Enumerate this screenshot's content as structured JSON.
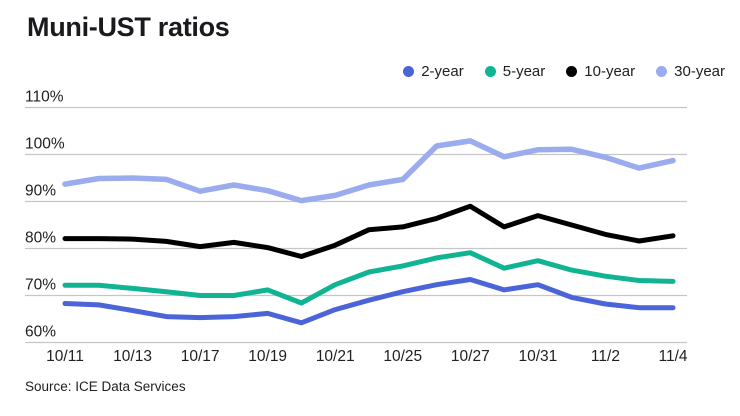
{
  "title": "Muni-UST ratios",
  "source": "Source: ICE Data Services",
  "legend": [
    {
      "label": "2-year",
      "color": "#4b64d8"
    },
    {
      "label": "5-year",
      "color": "#10b493"
    },
    {
      "label": "10-year",
      "color": "#000000"
    },
    {
      "label": "30-year",
      "color": "#9bacee"
    }
  ],
  "chart_data": {
    "type": "line",
    "title": "Muni-UST ratios",
    "x": [
      "10/11",
      "10/12",
      "10/13",
      "10/14",
      "10/17",
      "10/18",
      "10/19",
      "10/20",
      "10/21",
      "10/24",
      "10/25",
      "10/26",
      "10/27",
      "10/28",
      "10/31",
      "11/1",
      "11/2",
      "11/3",
      "11/4"
    ],
    "x_ticks_shown": [
      "10/11",
      "10/13",
      "10/17",
      "10/19",
      "10/21",
      "10/25",
      "10/27",
      "10/31",
      "11/2",
      "11/4"
    ],
    "series": [
      {
        "name": "2-year",
        "color": "#4b64d8",
        "values": [
          68.3,
          68.0,
          66.8,
          65.5,
          65.3,
          65.5,
          66.2,
          64.2,
          67.0,
          69.0,
          70.8,
          72.3,
          73.4,
          71.2,
          72.3,
          69.6,
          68.2,
          67.4,
          67.4
        ]
      },
      {
        "name": "5-year",
        "color": "#10b493",
        "values": [
          72.2,
          72.2,
          71.5,
          70.8,
          70.0,
          70.0,
          71.2,
          68.4,
          72.3,
          75.0,
          76.3,
          78.0,
          79.1,
          75.8,
          77.4,
          75.4,
          74.1,
          73.2,
          73.0
        ]
      },
      {
        "name": "10-year",
        "color": "#000000",
        "values": [
          82.1,
          82.1,
          82.0,
          81.5,
          80.4,
          81.3,
          80.2,
          78.3,
          80.7,
          84.0,
          84.6,
          86.4,
          89.0,
          84.6,
          87.0,
          85.0,
          83.0,
          81.6,
          82.7
        ]
      },
      {
        "name": "30-year",
        "color": "#9bacee",
        "values": [
          93.7,
          94.9,
          95.0,
          94.7,
          92.2,
          93.5,
          92.3,
          90.2,
          91.3,
          93.5,
          94.7,
          101.8,
          102.9,
          99.5,
          101.0,
          101.1,
          99.4,
          97.1,
          98.7
        ]
      }
    ],
    "ylim": [
      60,
      110
    ],
    "ytick_step": 10,
    "ytick_suffix": "%",
    "grid": "horizontal",
    "legend_position": "top-right",
    "gridline_color": "#c6c6c6",
    "tick_label_color": "#202124"
  }
}
